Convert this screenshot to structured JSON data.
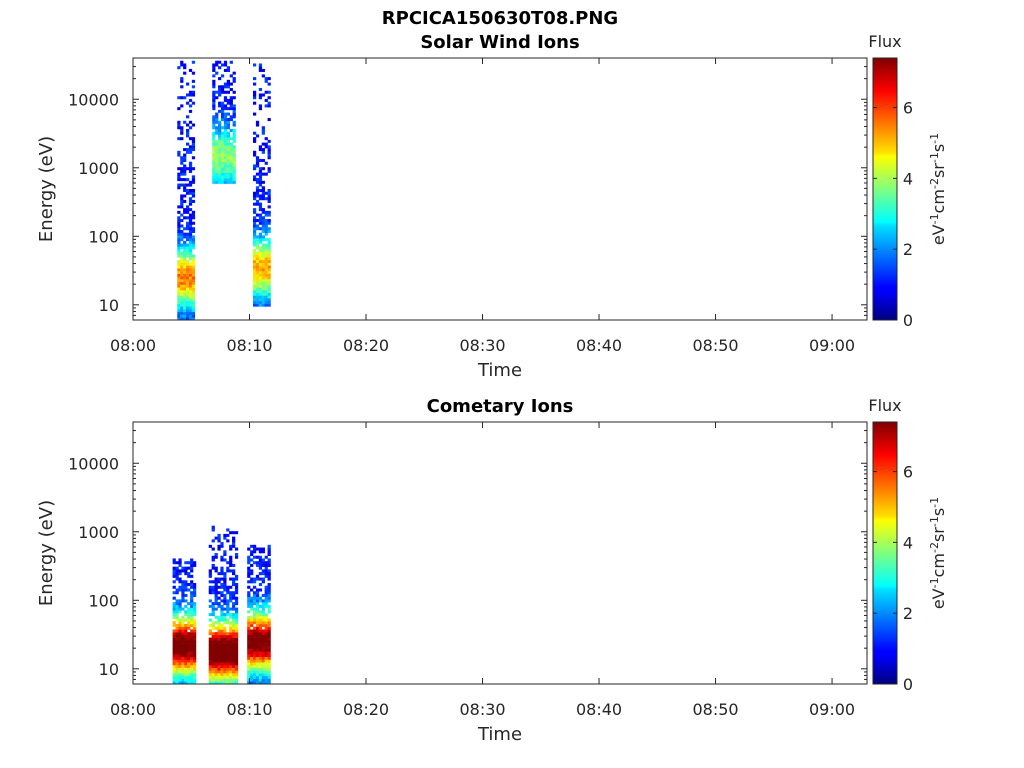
{
  "figure": {
    "title": "RPCICA150630T08.PNG"
  },
  "chart_data": [
    {
      "type": "heatmap",
      "title": "Solar Wind Ions",
      "xlabel": "Time",
      "ylabel": "Energy (eV)",
      "x_tick_labels": [
        "08:00",
        "08:10",
        "08:20",
        "08:30",
        "08:40",
        "08:50",
        "09:00"
      ],
      "x_tick_minutes": [
        0,
        10,
        20,
        30,
        40,
        50,
        60
      ],
      "xlim_minutes": [
        0,
        63
      ],
      "y_tick_labels": [
        "10",
        "100",
        "1000",
        "10000"
      ],
      "y_tick_values": [
        10,
        100,
        1000,
        10000
      ],
      "ylim": [
        6,
        40000
      ],
      "y_scale": "log",
      "colorbar": {
        "label": "Flux",
        "unit_label": "eV-1cm-2sr-1s-1",
        "ticks": [
          "0",
          "2",
          "4",
          "6"
        ],
        "range": [
          0,
          7.4
        ]
      },
      "colormap": "jet",
      "bursts": [
        {
          "t_start": 3.8,
          "t_end": 5.3,
          "e_min": 6,
          "e_max": 35000,
          "core_flux": 4.5,
          "core_energy": 25
        },
        {
          "t_start": 6.8,
          "t_end": 8.6,
          "e_min": 600,
          "e_max": 35000,
          "core_flux": 2.8,
          "core_energy": 1500
        },
        {
          "t_start": 10.3,
          "t_end": 11.8,
          "e_min": 10,
          "e_max": 35000,
          "core_flux": 4.2,
          "core_energy": 35
        }
      ]
    },
    {
      "type": "heatmap",
      "title": "Cometary Ions",
      "xlabel": "Time",
      "ylabel": "Energy (eV)",
      "x_tick_labels": [
        "08:00",
        "08:10",
        "08:20",
        "08:30",
        "08:40",
        "08:50",
        "09:00"
      ],
      "x_tick_minutes": [
        0,
        10,
        20,
        30,
        40,
        50,
        60
      ],
      "xlim_minutes": [
        0,
        63
      ],
      "y_tick_labels": [
        "10",
        "100",
        "1000",
        "10000"
      ],
      "y_tick_values": [
        10,
        100,
        1000,
        10000
      ],
      "ylim": [
        6,
        40000
      ],
      "y_scale": "log",
      "colorbar": {
        "label": "Flux",
        "unit_label": "eV-1cm-2sr-1s-1",
        "ticks": [
          "0",
          "2",
          "4",
          "6"
        ],
        "range": [
          0,
          7.4
        ]
      },
      "colormap": "jet",
      "bursts": [
        {
          "t_start": 3.4,
          "t_end": 5.4,
          "e_min": 6,
          "e_max": 400,
          "core_flux": 6.8,
          "core_energy": 22
        },
        {
          "t_start": 6.5,
          "t_end": 9.0,
          "e_min": 6,
          "e_max": 1200,
          "core_flux": 7.2,
          "core_energy": 18
        },
        {
          "t_start": 9.8,
          "t_end": 11.8,
          "e_min": 6,
          "e_max": 600,
          "core_flux": 6.6,
          "core_energy": 25
        }
      ]
    }
  ]
}
